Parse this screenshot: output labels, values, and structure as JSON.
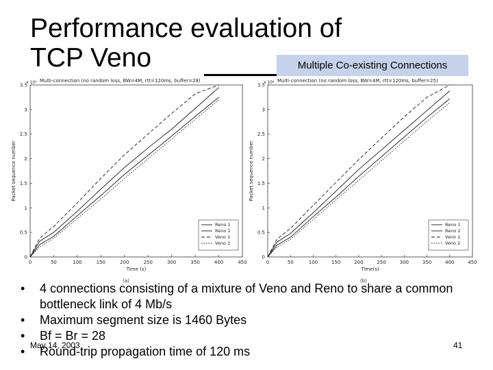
{
  "slide": {
    "title_line1": "Performance evaluation of",
    "title_line2": "TCP Veno",
    "tag": "Multiple Co-existing Connections",
    "bullets": [
      {
        "bullet": "•",
        "text": "4 connections consisting of a mixture of Veno and Reno to share a common bottleneck link of 4 Mb/s"
      },
      {
        "bullet": "•",
        "text": "Maximum segment size is 1460 Bytes"
      },
      {
        "bullet": "•",
        "text": "Bf = Br = 28"
      },
      {
        "bullet": "•",
        "text": "Round-trip propagation time of 120 ms"
      }
    ],
    "date": "May 14, 2003",
    "page_number": "41"
  },
  "chart_data": [
    {
      "type": "line",
      "title": "Multi-connection (no random loss, BW=4M, rtt=120ms, buffer=28)",
      "xlabel": "Time (s)",
      "ylabel": "Packet sequence number",
      "y_multiplier": "x 10⁴",
      "caption": "(a)",
      "xlim": [
        0,
        450
      ],
      "ylim": [
        0,
        3.5
      ],
      "xticks": [
        0,
        50,
        100,
        150,
        200,
        250,
        300,
        350,
        400,
        450
      ],
      "yticks": [
        0,
        0.5,
        1,
        1.5,
        2,
        2.5,
        3,
        3.5
      ],
      "legend_position": "bottom-right",
      "series": [
        {
          "name": "Reno 1",
          "dash": "",
          "x": [
            0,
            20,
            50,
            100,
            150,
            200,
            250,
            300,
            350,
            400
          ],
          "y": [
            0,
            0.32,
            0.5,
            0.93,
            1.38,
            1.82,
            2.22,
            2.6,
            3.02,
            3.45
          ]
        },
        {
          "name": "Reno 2",
          "dash": "",
          "x": [
            0,
            20,
            50,
            100,
            150,
            200,
            250,
            300,
            350,
            400
          ],
          "y": [
            0,
            0.25,
            0.42,
            0.84,
            1.25,
            1.68,
            2.07,
            2.46,
            2.86,
            3.25
          ]
        },
        {
          "name": "Veno 1",
          "dash": "5,3",
          "x": [
            0,
            20,
            50,
            100,
            150,
            200,
            250,
            300,
            350,
            400
          ],
          "y": [
            0,
            0.38,
            0.62,
            1.1,
            1.6,
            2.08,
            2.5,
            2.92,
            3.32,
            3.5
          ]
        },
        {
          "name": "Veno 2",
          "dash": "1.5,2",
          "x": [
            0,
            20,
            50,
            100,
            150,
            200,
            250,
            300,
            350,
            400
          ],
          "y": [
            0,
            0.2,
            0.38,
            0.78,
            1.18,
            1.6,
            2.0,
            2.4,
            2.8,
            3.2
          ]
        }
      ]
    },
    {
      "type": "line",
      "title": "Multi-connection (no random loss, BW=4M, rtt=120ms, buffer=25)",
      "xlabel": "Time(s)",
      "ylabel": "Packet sequence number",
      "y_multiplier": "x 10⁴",
      "caption": "(b)",
      "xlim": [
        0,
        450
      ],
      "ylim": [
        0,
        3.5
      ],
      "xticks": [
        0,
        50,
        100,
        150,
        200,
        250,
        300,
        350,
        400,
        450
      ],
      "yticks": [
        0,
        0.5,
        1,
        1.5,
        2,
        2.5,
        3,
        3.5
      ],
      "legend_position": "bottom-right",
      "series": [
        {
          "name": "Reno 1",
          "dash": "",
          "x": [
            0,
            20,
            50,
            100,
            150,
            200,
            250,
            300,
            350,
            400
          ],
          "y": [
            0,
            0.3,
            0.48,
            0.9,
            1.34,
            1.78,
            2.18,
            2.58,
            2.98,
            3.38
          ]
        },
        {
          "name": "Reno 2",
          "dash": "",
          "x": [
            0,
            20,
            50,
            100,
            150,
            200,
            250,
            300,
            350,
            400
          ],
          "y": [
            0,
            0.24,
            0.4,
            0.82,
            1.22,
            1.64,
            2.04,
            2.44,
            2.84,
            3.22
          ]
        },
        {
          "name": "Veno 1",
          "dash": "5,3",
          "x": [
            0,
            20,
            50,
            100,
            150,
            200,
            250,
            300,
            350,
            400
          ],
          "y": [
            0,
            0.36,
            0.58,
            1.05,
            1.52,
            1.98,
            2.42,
            2.85,
            3.25,
            3.5
          ]
        },
        {
          "name": "Veno 2",
          "dash": "1.5,2",
          "x": [
            0,
            20,
            50,
            100,
            150,
            200,
            250,
            300,
            350,
            400
          ],
          "y": [
            0,
            0.2,
            0.36,
            0.76,
            1.16,
            1.56,
            1.96,
            2.36,
            2.76,
            3.14
          ]
        }
      ]
    }
  ]
}
